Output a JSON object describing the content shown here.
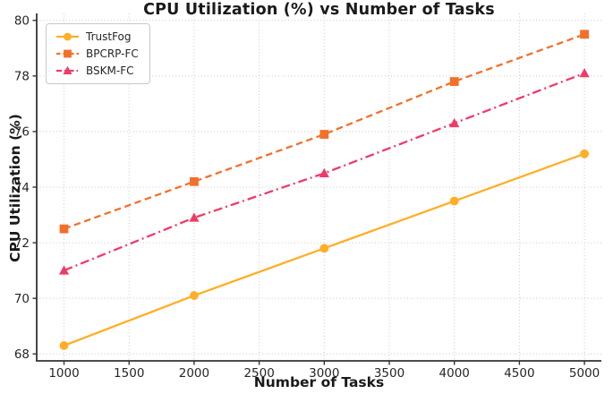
{
  "figure": {
    "background": "#ffffff"
  },
  "chart_data": {
    "type": "line",
    "title": "CPU Utilization (%) vs Number of Tasks",
    "xlabel": "Number of Tasks",
    "ylabel": "CPU Utilization (%)",
    "x": [
      1000,
      2000,
      3000,
      4000,
      5000
    ],
    "series": [
      {
        "name": "TrustFog",
        "values": [
          68.3,
          70.1,
          71.8,
          73.5,
          75.2
        ],
        "color": "#FFAE25",
        "linestyle": "solid",
        "marker": "circle"
      },
      {
        "name": "BPCRP-FC",
        "values": [
          72.5,
          74.2,
          75.9,
          77.8,
          79.5
        ],
        "color": "#F3702A",
        "linestyle": "dashed",
        "marker": "square"
      },
      {
        "name": "BSKM-FC",
        "values": [
          71.0,
          72.9,
          74.5,
          76.3,
          78.1
        ],
        "color": "#F03A66",
        "linestyle": "dashdot",
        "marker": "triangle"
      }
    ],
    "xticks": [
      1000,
      1500,
      2000,
      2500,
      3000,
      3500,
      4000,
      4500,
      5000
    ],
    "yticks": [
      68,
      70,
      72,
      74,
      76,
      78,
      80
    ],
    "xlim": [
      790,
      5130
    ],
    "ylim": [
      67.75,
      80.25
    ],
    "grid": true,
    "grid_style": "dotted",
    "legend_position": "upper left",
    "colors": {
      "spine": "#333333",
      "tick_label": "#262626",
      "grid": "#c9c9c9",
      "title": "#1a1a1a"
    }
  }
}
